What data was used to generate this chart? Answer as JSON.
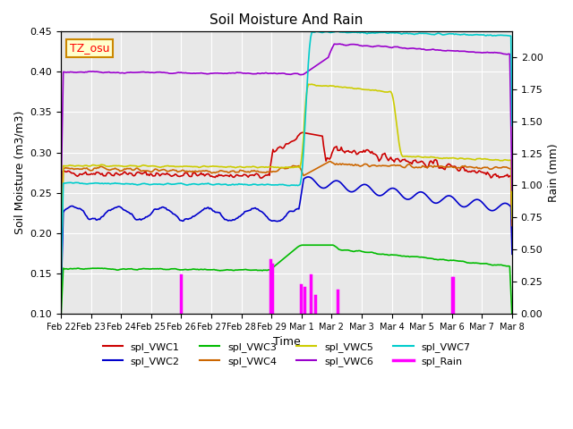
{
  "title": "Soil Moisture And Rain",
  "xlabel": "Time",
  "ylabel_left": "Soil Moisture (m3/m3)",
  "ylabel_right": "Rain (mm)",
  "ylim_left": [
    0.1,
    0.45
  ],
  "ylim_right": [
    0.0,
    2.2
  ],
  "annotation": "TZ_osu",
  "num_points": 384,
  "colors": {
    "VWC1": "#cc0000",
    "VWC2": "#0000cc",
    "VWC3": "#00bb00",
    "VWC4": "#cc6600",
    "VWC5": "#cccc00",
    "VWC6": "#9900cc",
    "VWC7": "#00cccc",
    "Rain": "#ff00ff"
  },
  "bg_color": "#e8e8e8",
  "legend_entries": [
    "spl_VWC1",
    "spl_VWC2",
    "spl_VWC3",
    "spl_VWC4",
    "spl_VWC5",
    "spl_VWC6",
    "spl_VWC7",
    "spl_Rain"
  ],
  "x_tick_labels": [
    "Feb 22",
    "Feb 23",
    "Feb 24",
    "Feb 25",
    "Feb 26",
    "Feb 27",
    "Feb 28",
    "Feb 29",
    "Mar 1",
    "Mar 2",
    "Mar 3",
    "Mar 4",
    "Mar 5",
    "Mar 6",
    "Mar 7",
    "Mar 8"
  ]
}
